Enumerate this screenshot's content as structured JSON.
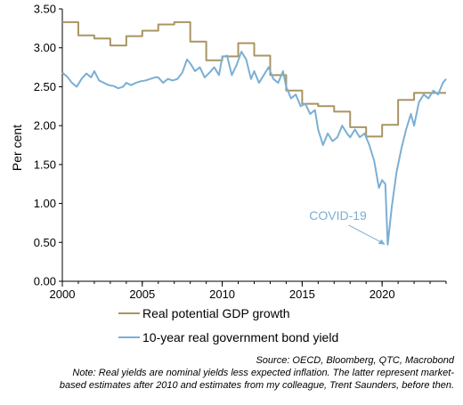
{
  "chart_data": {
    "type": "line",
    "title": "",
    "xlabel": "",
    "ylabel": "Per cent",
    "xlim": [
      2000,
      2024
    ],
    "ylim": [
      0,
      3.5
    ],
    "x_ticks": [
      "2000",
      "2005",
      "2010",
      "2015",
      "2020"
    ],
    "y_ticks": [
      "0.00",
      "0.50",
      "1.00",
      "1.50",
      "2.00",
      "2.50",
      "3.00",
      "3.50"
    ],
    "grid": false,
    "legend": "bottom",
    "series": [
      {
        "name": "Real potential GDP growth",
        "color": "#a89563",
        "step": true,
        "x": [
          2000.0,
          2001.0,
          2002.0,
          2003.0,
          2004.0,
          2005.0,
          2006.0,
          2007.0,
          2008.0,
          2009.0,
          2010.0,
          2011.0,
          2012.0,
          2013.0,
          2014.0,
          2015.0,
          2016.0,
          2017.0,
          2018.0,
          2019.0,
          2020.0,
          2021.0,
          2022.0,
          2023.0,
          2024.0
        ],
        "values": [
          3.33,
          3.16,
          3.12,
          3.03,
          3.15,
          3.22,
          3.3,
          3.33,
          3.08,
          2.84,
          2.89,
          3.06,
          2.9,
          2.65,
          2.45,
          2.28,
          2.25,
          2.18,
          1.98,
          1.86,
          2.01,
          2.33,
          2.42,
          2.42,
          2.42
        ]
      },
      {
        "name": "10-year real government bond yield",
        "color": "#7bafd4",
        "step": false,
        "x": [
          2000.0,
          2000.3,
          2000.6,
          2000.9,
          2001.2,
          2001.5,
          2001.8,
          2002.0,
          2002.3,
          2002.6,
          2002.9,
          2003.2,
          2003.5,
          2003.8,
          2004.0,
          2004.3,
          2004.6,
          2004.9,
          2005.2,
          2005.5,
          2005.8,
          2006.0,
          2006.3,
          2006.6,
          2006.9,
          2007.2,
          2007.5,
          2007.8,
          2008.0,
          2008.3,
          2008.6,
          2008.9,
          2009.2,
          2009.5,
          2009.8,
          2010.0,
          2010.3,
          2010.6,
          2010.9,
          2011.2,
          2011.5,
          2011.8,
          2012.0,
          2012.3,
          2012.6,
          2012.9,
          2013.2,
          2013.5,
          2013.8,
          2014.0,
          2014.3,
          2014.6,
          2014.9,
          2015.2,
          2015.5,
          2015.8,
          2016.0,
          2016.3,
          2016.6,
          2016.9,
          2017.2,
          2017.5,
          2017.8,
          2018.0,
          2018.3,
          2018.6,
          2018.9,
          2019.2,
          2019.5,
          2019.8,
          2020.0,
          2020.2,
          2020.35,
          2020.6,
          2020.9,
          2021.2,
          2021.5,
          2021.8,
          2022.0,
          2022.3,
          2022.6,
          2022.9,
          2023.2,
          2023.5,
          2023.8,
          2024.0
        ],
        "values": [
          2.68,
          2.63,
          2.55,
          2.5,
          2.6,
          2.67,
          2.62,
          2.7,
          2.58,
          2.55,
          2.52,
          2.51,
          2.48,
          2.5,
          2.55,
          2.52,
          2.55,
          2.57,
          2.58,
          2.6,
          2.62,
          2.62,
          2.55,
          2.6,
          2.58,
          2.6,
          2.68,
          2.85,
          2.8,
          2.7,
          2.75,
          2.62,
          2.68,
          2.75,
          2.65,
          2.88,
          2.9,
          2.65,
          2.78,
          2.95,
          2.85,
          2.6,
          2.7,
          2.55,
          2.65,
          2.75,
          2.6,
          2.55,
          2.7,
          2.5,
          2.35,
          2.4,
          2.25,
          2.28,
          2.15,
          2.2,
          1.95,
          1.75,
          1.9,
          1.8,
          1.85,
          2.0,
          1.9,
          1.85,
          1.95,
          1.85,
          1.9,
          1.75,
          1.55,
          1.2,
          1.3,
          1.25,
          0.47,
          0.95,
          1.4,
          1.7,
          1.95,
          2.15,
          2.0,
          2.3,
          2.4,
          2.35,
          2.45,
          2.4,
          2.55,
          2.6
        ]
      }
    ],
    "annotations": [
      {
        "text": "COVID-19",
        "x": 2020.3,
        "y": 0.47,
        "color": "#7bafd4"
      }
    ]
  },
  "source_note": "Source: OECD, Bloomberg, QTC, Macrobond",
  "note_line1": "Note: Real yields are nominal yields less expected inflation. The latter represent market-",
  "note_line2": "based estimates after 2010 and estimates from my colleague, Trent Saunders, before then."
}
